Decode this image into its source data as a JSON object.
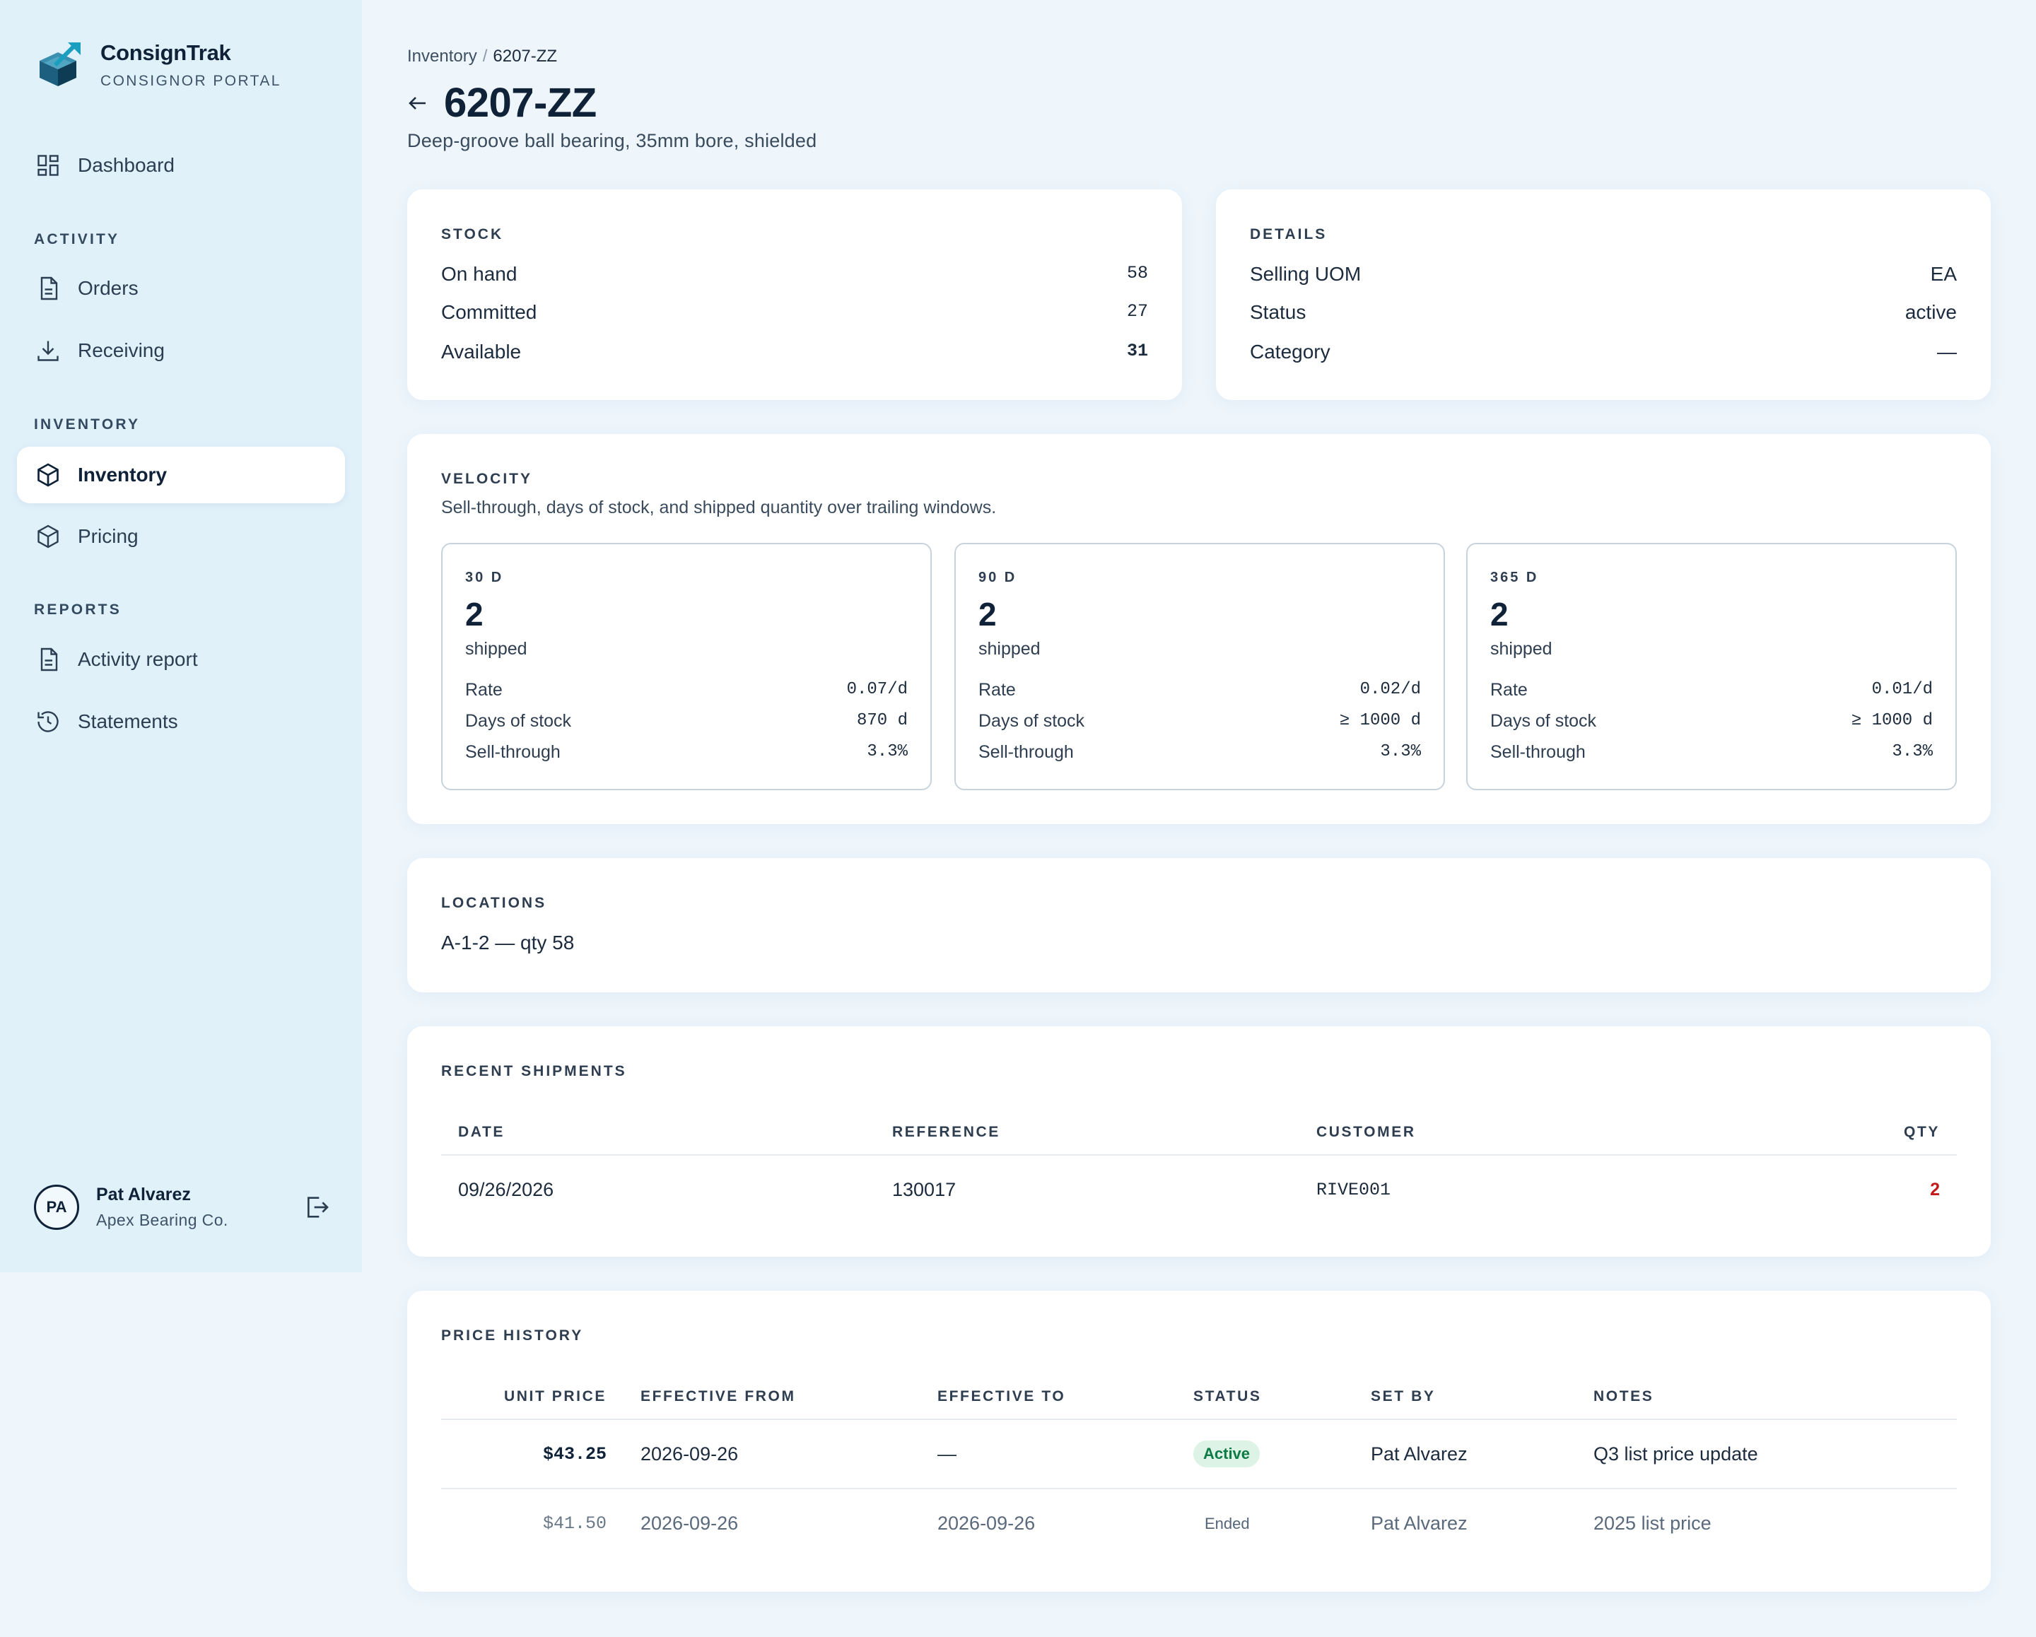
{
  "brand": {
    "name": "ConsignTrak",
    "subtitle": "CONSIGNOR PORTAL"
  },
  "nav": {
    "dashboard": "Dashboard",
    "section_activity": "ACTIVITY",
    "orders": "Orders",
    "receiving": "Receiving",
    "section_inventory": "INVENTORY",
    "inventory": "Inventory",
    "pricing": "Pricing",
    "section_reports": "REPORTS",
    "activity_report": "Activity report",
    "statements": "Statements"
  },
  "user": {
    "initials": "PA",
    "name": "Pat Alvarez",
    "org": "Apex Bearing Co."
  },
  "breadcrumb": {
    "parent": "Inventory",
    "separator": "/",
    "current": "6207-ZZ"
  },
  "page": {
    "title": "6207-ZZ",
    "description": "Deep-groove ball bearing, 35mm bore, shielded"
  },
  "stock": {
    "title": "STOCK",
    "rows": [
      {
        "label": "On hand",
        "value": "58"
      },
      {
        "label": "Committed",
        "value": "27"
      },
      {
        "label": "Available",
        "value": "31"
      }
    ]
  },
  "details": {
    "title": "DETAILS",
    "rows": [
      {
        "label": "Selling UOM",
        "value": "EA"
      },
      {
        "label": "Status",
        "value": "active"
      },
      {
        "label": "Category",
        "value": "—"
      }
    ]
  },
  "velocity": {
    "title": "VELOCITY",
    "subtitle": "Sell-through, days of stock, and shipped quantity over trailing windows.",
    "windows": [
      {
        "label": "30 D",
        "shipped": "2",
        "unit": "shipped",
        "rate_label": "Rate",
        "rate": "0.07/d",
        "dos_label": "Days of stock",
        "dos": "870 d",
        "st_label": "Sell-through",
        "st": "3.3%"
      },
      {
        "label": "90 D",
        "shipped": "2",
        "unit": "shipped",
        "rate_label": "Rate",
        "rate": "0.02/d",
        "dos_label": "Days of stock",
        "dos": "≥ 1000 d",
        "st_label": "Sell-through",
        "st": "3.3%"
      },
      {
        "label": "365 D",
        "shipped": "2",
        "unit": "shipped",
        "rate_label": "Rate",
        "rate": "0.01/d",
        "dos_label": "Days of stock",
        "dos": "≥ 1000 d",
        "st_label": "Sell-through",
        "st": "3.3%"
      }
    ]
  },
  "locations": {
    "title": "LOCATIONS",
    "items": [
      "A-1-2 — qty 58"
    ]
  },
  "shipments": {
    "title": "RECENT SHIPMENTS",
    "columns": [
      "DATE",
      "REFERENCE",
      "CUSTOMER",
      "QTY"
    ],
    "rows": [
      {
        "date": "09/26/2026",
        "reference": "130017",
        "customer": "RIVE001",
        "qty": "2"
      }
    ],
    "qty_color": "#c41a1a"
  },
  "price_history": {
    "title": "PRICE HISTORY",
    "columns": [
      "UNIT PRICE",
      "EFFECTIVE FROM",
      "EFFECTIVE TO",
      "STATUS",
      "SET BY",
      "NOTES"
    ],
    "rows": [
      {
        "unit_price": "$43.25",
        "from": "2026-09-26",
        "to": "—",
        "status": "Active",
        "set_by": "Pat Alvarez",
        "notes": "Q3 list price update"
      },
      {
        "unit_price": "$41.50",
        "from": "2026-09-26",
        "to": "2026-09-26",
        "status": "Ended",
        "set_by": "Pat Alvarez",
        "notes": "2025 list price"
      }
    ]
  },
  "colors": {
    "accent": "#0f2238",
    "active_badge_bg": "#dcf3e6",
    "active_badge_text": "#0e7a45",
    "sidebar_bg": "#e1f1fa",
    "page_bg": "#eef6fc"
  }
}
